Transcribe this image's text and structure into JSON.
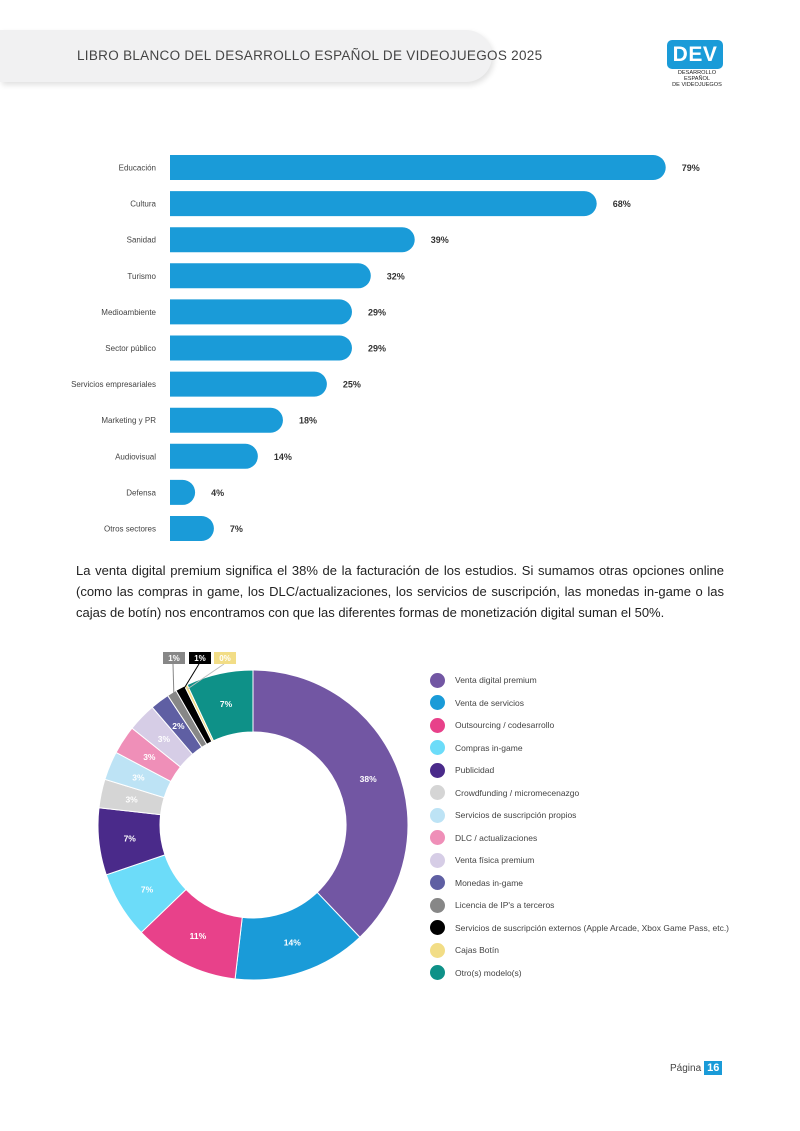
{
  "header": {
    "title": "LIBRO BLANCO DEL DESARROLLO ESPAÑOL DE VIDEOJUEGOS 2025"
  },
  "logo": {
    "mark": "DEV",
    "line1": "DESARROLLO ESPAÑOL",
    "line2": "DE VIDEOJUEGOS"
  },
  "paragraph": "La venta digital premium significa el 38% de la facturación de los estudios. Si sumamos otras opciones online (como las compras in game, los DLC/actualizaciones, los servicios de suscripción, las monedas in-game o las cajas de botín) nos encontramos con que las diferentes formas de monetización digital suman el 50%.",
  "footer": {
    "page_label": "Página",
    "page_number": "16"
  },
  "colors": {
    "bar": "#1a9bd8",
    "brand": "#1a9bd8"
  },
  "chart_data": [
    {
      "type": "bar",
      "orientation": "horizontal",
      "categories": [
        "Educación",
        "Cultura",
        "Sanidad",
        "Turismo",
        "Medioambiente",
        "Sector público",
        "Servicios empresariales",
        "Marketing y PR",
        "Audiovisual",
        "Defensa",
        "Otros sectores"
      ],
      "values": [
        79,
        68,
        39,
        32,
        29,
        29,
        25,
        18,
        14,
        4,
        7
      ],
      "labels": [
        "79%",
        "68%",
        "39%",
        "32%",
        "29%",
        "29%",
        "25%",
        "18%",
        "14%",
        "4%",
        "7%"
      ],
      "unit": "%",
      "xlim": [
        0,
        80
      ]
    },
    {
      "type": "pie",
      "variant": "donut",
      "series": [
        {
          "name": "Venta digital premium",
          "value": 38,
          "label": "38%",
          "color": "#7256a3"
        },
        {
          "name": "Venta de servicios",
          "value": 14,
          "label": "14%",
          "color": "#1a9bd8"
        },
        {
          "name": "Outsourcing / codesarrollo",
          "value": 11,
          "label": "11%",
          "color": "#e8418a"
        },
        {
          "name": "Compras in-game",
          "value": 7,
          "label": "7%",
          "color": "#6cdcf9"
        },
        {
          "name": "Publicidad",
          "value": 7,
          "label": "7%",
          "color": "#4a2a8a"
        },
        {
          "name": "Crowdfunding / micromecenazgo",
          "value": 3,
          "label": "3%",
          "color": "#d5d5d5"
        },
        {
          "name": "Servicios de suscripción propios",
          "value": 3,
          "label": "3%",
          "color": "#bde3f5"
        },
        {
          "name": "DLC / actualizaciones",
          "value": 3,
          "label": "3%",
          "color": "#ef8fb8"
        },
        {
          "name": "Venta física premium",
          "value": 3,
          "label": "3%",
          "color": "#d6cde6"
        },
        {
          "name": "Monedas in-game",
          "value": 2,
          "label": "2%",
          "color": "#5f5fa3"
        },
        {
          "name": "Licencia de IP's a terceros",
          "value": 1,
          "label": "1%",
          "color": "#878787"
        },
        {
          "name": "Servicios de suscripción externos (Apple Arcade, Xbox Game Pass, etc.)",
          "value": 1,
          "label": "1%",
          "color": "#000000"
        },
        {
          "name": "Cajas Botín",
          "value": 0.3,
          "label": "0%",
          "color": "#f2dd86"
        },
        {
          "name": "Otro(s) modelo(s)",
          "value": 7,
          "label": "7%",
          "color": "#0e9188"
        }
      ]
    }
  ]
}
